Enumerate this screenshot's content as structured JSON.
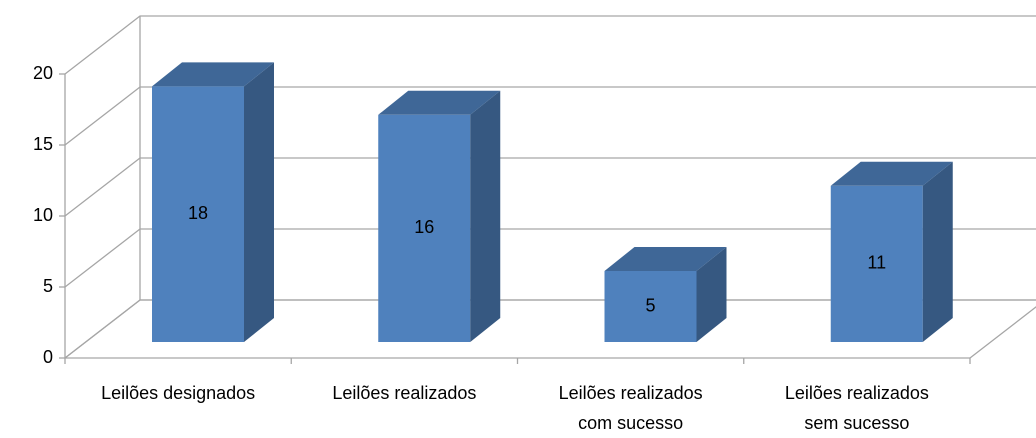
{
  "chart_data": {
    "type": "bar3d",
    "categories": [
      "Leilões designados",
      "Leilões realizados",
      "Leilões realizados com sucesso",
      "Leilões realizados sem sucesso"
    ],
    "values": [
      18,
      16,
      5,
      11
    ],
    "color": "#4f81bd",
    "ylim": [
      0,
      20
    ],
    "yticks": [
      0,
      5,
      10,
      15,
      20
    ],
    "grid": true
  }
}
